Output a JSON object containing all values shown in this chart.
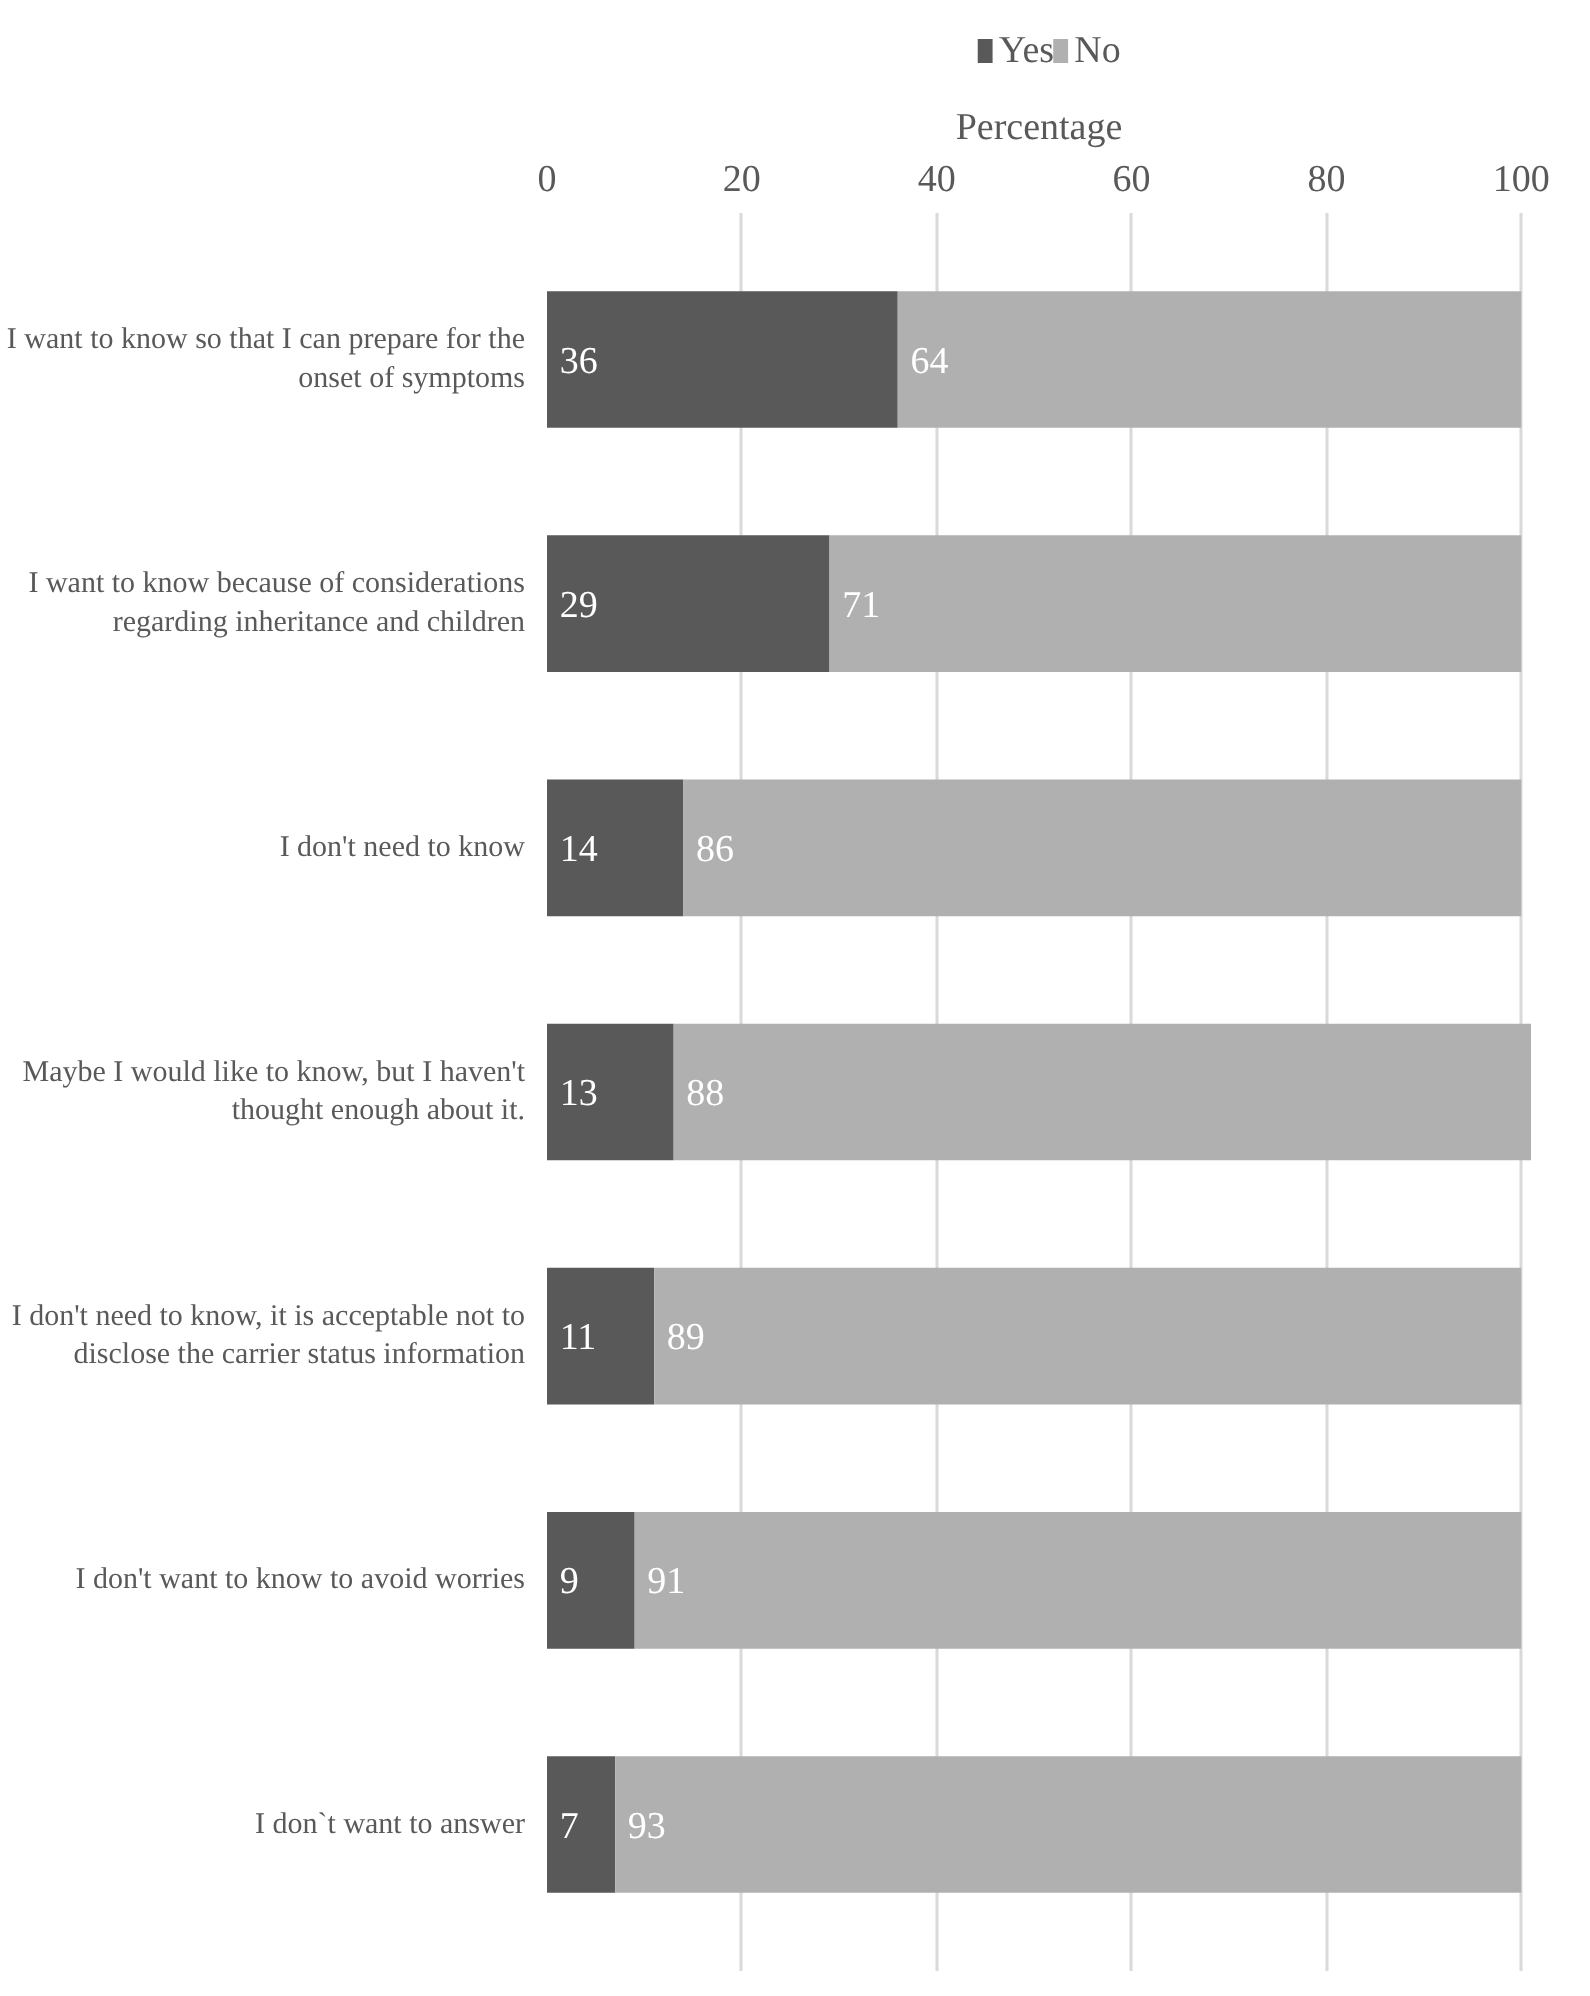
{
  "chart_data": {
    "type": "bar",
    "orientation": "horizontal",
    "stacked": true,
    "xlabel": "Percentage",
    "categories": [
      "I want to know so that I can prepare for the onset of symptoms",
      "I want to know because of considerations regarding inheritance and children",
      "I don't need to know",
      "Maybe I would like to know, but I haven't thought enough about it.",
      "I don't need to know, it is acceptable not to disclose the carrier status information",
      "I don't want to know to avoid worries",
      "I don`t want to answer"
    ],
    "series": [
      {
        "name": "Yes",
        "color": "#595959",
        "values": [
          36,
          29,
          14,
          13,
          11,
          9,
          7
        ]
      },
      {
        "name": "No",
        "color": "#b0b0b0",
        "values": [
          64,
          71,
          86,
          88,
          89,
          91,
          93
        ]
      }
    ],
    "xlim": [
      0,
      101
    ],
    "xticks": [
      0,
      20,
      40,
      60,
      80,
      100
    ],
    "grid": "x",
    "legend": "top",
    "data_labels": true
  }
}
